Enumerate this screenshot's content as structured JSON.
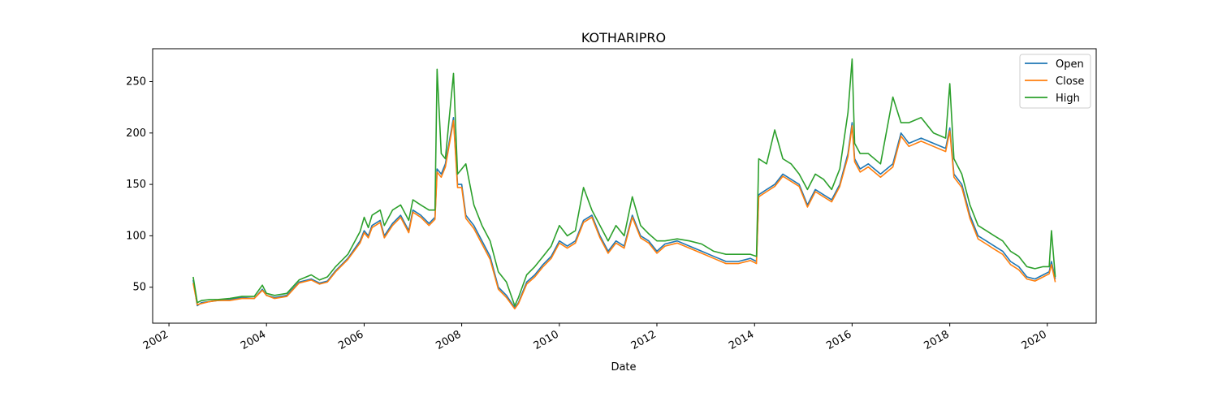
{
  "chart_data": {
    "type": "line",
    "title": "KOTHARIPRO",
    "xlabel": "Date",
    "ylabel": "",
    "xlim": [
      "2001-09-01",
      "2021-01-01"
    ],
    "ylim": [
      15,
      282
    ],
    "x_ticks": [
      "2002",
      "2004",
      "2006",
      "2008",
      "2010",
      "2012",
      "2014",
      "2016",
      "2018",
      "2020"
    ],
    "y_ticks": [
      50,
      100,
      150,
      200,
      250
    ],
    "grid": false,
    "legend_position": "top-right",
    "series": [
      {
        "name": "Open",
        "color": "#1f77b4"
      },
      {
        "name": "Close",
        "color": "#ff7f0e"
      },
      {
        "name": "High",
        "color": "#2ca02c"
      }
    ],
    "x": [
      "2002-07-01",
      "2002-08-01",
      "2002-09-01",
      "2002-11-01",
      "2003-01-01",
      "2003-04-01",
      "2003-07-01",
      "2003-10-01",
      "2003-12-01",
      "2004-01-01",
      "2004-03-01",
      "2004-06-01",
      "2004-09-01",
      "2004-12-01",
      "2005-02-01",
      "2005-04-01",
      "2005-06-01",
      "2005-09-01",
      "2005-12-01",
      "2006-01-01",
      "2006-02-01",
      "2006-03-01",
      "2006-05-01",
      "2006-06-01",
      "2006-08-01",
      "2006-10-01",
      "2006-12-01",
      "2007-01-01",
      "2007-03-01",
      "2007-05-01",
      "2007-06-15",
      "2007-07-01",
      "2007-08-01",
      "2007-09-01",
      "2007-11-01",
      "2007-12-01",
      "2008-01-01",
      "2008-02-01",
      "2008-04-01",
      "2008-06-01",
      "2008-08-01",
      "2008-10-01",
      "2008-12-01",
      "2009-02-01",
      "2009-03-01",
      "2009-05-01",
      "2009-07-01",
      "2009-09-01",
      "2009-11-01",
      "2010-01-01",
      "2010-03-01",
      "2010-05-01",
      "2010-07-01",
      "2010-09-01",
      "2010-11-01",
      "2011-01-01",
      "2011-03-01",
      "2011-05-01",
      "2011-07-01",
      "2011-09-01",
      "2011-11-01",
      "2012-01-01",
      "2012-03-01",
      "2012-06-01",
      "2012-09-01",
      "2012-12-01",
      "2013-03-01",
      "2013-06-01",
      "2013-09-01",
      "2013-12-01",
      "2014-01-15",
      "2014-02-01",
      "2014-04-01",
      "2014-06-01",
      "2014-08-01",
      "2014-10-01",
      "2014-12-01",
      "2015-02-01",
      "2015-04-01",
      "2015-06-01",
      "2015-08-01",
      "2015-10-01",
      "2015-12-01",
      "2016-01-01",
      "2016-01-20",
      "2016-03-01",
      "2016-05-01",
      "2016-08-01",
      "2016-11-01",
      "2017-01-01",
      "2017-03-01",
      "2017-06-01",
      "2017-09-01",
      "2017-12-01",
      "2018-01-01",
      "2018-02-01",
      "2018-04-01",
      "2018-06-01",
      "2018-08-01",
      "2018-10-01",
      "2018-12-01",
      "2019-02-01",
      "2019-04-01",
      "2019-06-01",
      "2019-08-01",
      "2019-10-01",
      "2019-12-01",
      "2020-01-15",
      "2020-02-01",
      "2020-03-01"
    ],
    "open": [
      57,
      32,
      35,
      36,
      37,
      38,
      40,
      39,
      48,
      42,
      40,
      42,
      55,
      58,
      54,
      56,
      66,
      78,
      95,
      105,
      100,
      110,
      115,
      100,
      112,
      120,
      105,
      125,
      120,
      112,
      118,
      165,
      160,
      170,
      215,
      150,
      150,
      120,
      110,
      95,
      80,
      50,
      42,
      30,
      35,
      55,
      62,
      72,
      80,
      95,
      90,
      95,
      115,
      120,
      100,
      85,
      95,
      90,
      120,
      100,
      95,
      85,
      92,
      95,
      90,
      85,
      80,
      75,
      75,
      78,
      75,
      140,
      145,
      150,
      160,
      155,
      150,
      130,
      145,
      140,
      135,
      150,
      180,
      210,
      175,
      165,
      170,
      160,
      170,
      200,
      190,
      195,
      190,
      185,
      205,
      160,
      150,
      120,
      100,
      95,
      90,
      85,
      75,
      70,
      60,
      58,
      62,
      65,
      75,
      58
    ],
    "close": [
      54,
      33,
      34,
      36,
      37,
      37,
      39,
      39,
      47,
      42,
      39,
      41,
      54,
      57,
      53,
      55,
      65,
      77,
      93,
      103,
      98,
      108,
      113,
      98,
      110,
      118,
      103,
      123,
      118,
      110,
      116,
      162,
      157,
      167,
      212,
      147,
      147,
      117,
      107,
      92,
      77,
      48,
      40,
      29,
      34,
      53,
      60,
      70,
      78,
      93,
      88,
      93,
      113,
      118,
      98,
      83,
      93,
      88,
      118,
      98,
      93,
      83,
      90,
      93,
      88,
      83,
      78,
      73,
      73,
      76,
      73,
      138,
      143,
      148,
      158,
      153,
      148,
      128,
      143,
      138,
      133,
      148,
      177,
      207,
      172,
      162,
      167,
      157,
      167,
      197,
      187,
      192,
      187,
      182,
      202,
      157,
      147,
      117,
      97,
      92,
      87,
      82,
      72,
      67,
      58,
      56,
      60,
      63,
      72,
      55
    ],
    "high": [
      60,
      35,
      37,
      38,
      38,
      39,
      41,
      41,
      52,
      44,
      42,
      44,
      57,
      62,
      57,
      60,
      70,
      82,
      104,
      118,
      108,
      120,
      125,
      110,
      125,
      130,
      115,
      135,
      130,
      125,
      125,
      262,
      180,
      175,
      258,
      160,
      165,
      170,
      130,
      110,
      95,
      65,
      55,
      32,
      40,
      62,
      70,
      80,
      90,
      110,
      100,
      105,
      147,
      125,
      110,
      95,
      110,
      100,
      138,
      110,
      102,
      95,
      95,
      97,
      95,
      92,
      85,
      82,
      82,
      82,
      80,
      175,
      170,
      203,
      175,
      170,
      160,
      145,
      160,
      155,
      145,
      165,
      220,
      272,
      190,
      180,
      180,
      170,
      235,
      210,
      210,
      215,
      200,
      195,
      248,
      175,
      160,
      130,
      110,
      105,
      100,
      95,
      85,
      80,
      70,
      68,
      70,
      70,
      105,
      60
    ]
  }
}
